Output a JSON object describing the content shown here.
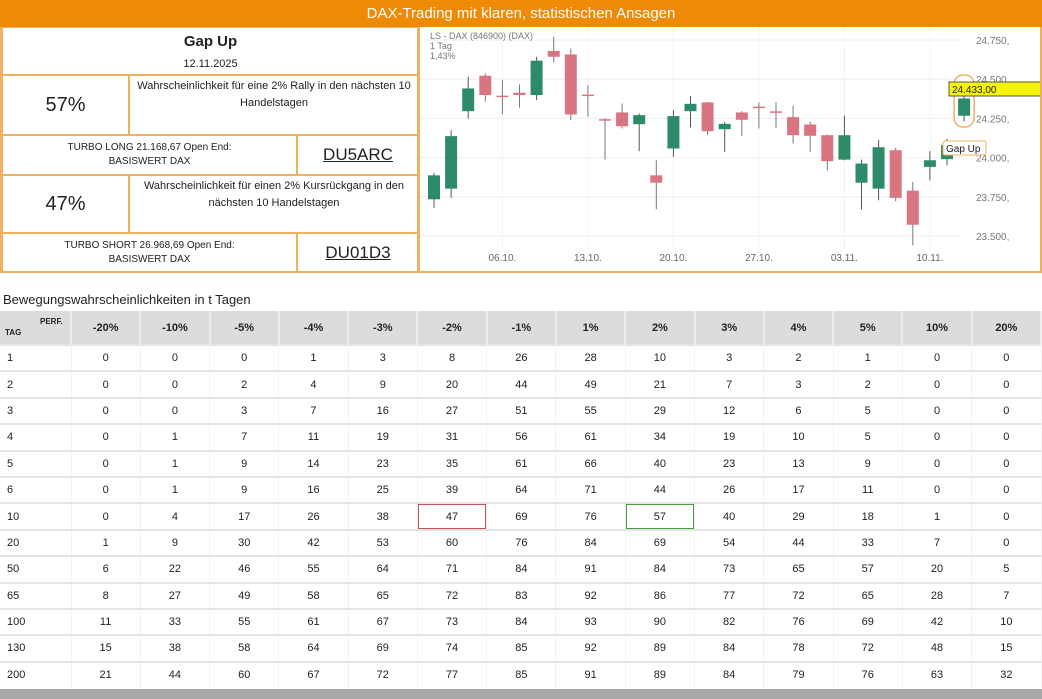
{
  "header": {
    "title": "DAX-Trading mit klaren, statistischen Ansagen"
  },
  "signal": {
    "name": "Gap Up",
    "date": "12.11.2025",
    "rally_pct": "57%",
    "rally_text": "Wahrscheinlichkeit für eine 2% Rally in den nächsten 10 Handelstagen",
    "long_text1": "TURBO LONG 21.168,67 Open End:",
    "long_text2": "BASISWERT DAX",
    "long_code": "DU5ARC",
    "drop_pct": "47%",
    "drop_text": "Wahrscheinlichkeit für einen 2% Kursrückgang in den nächsten 10 Handelstagen",
    "short_text1": "TURBO SHORT 26.968,69 Open End:",
    "short_text2": "BASISWERT DAX",
    "short_code": "DU01D3"
  },
  "chart_data": {
    "type": "candlestick",
    "legend": [
      "LS - DAX (846900) (DAX)",
      "1 Tag",
      "1,43%"
    ],
    "ylim": [
      23400,
      24800
    ],
    "y_ticks": [
      {
        "v": 24750,
        "label": "24.750,"
      },
      {
        "v": 24500,
        "label": "24.500,"
      },
      {
        "v": 24250,
        "label": "24.250,"
      },
      {
        "v": 24000,
        "label": "24.000,"
      },
      {
        "v": 23750,
        "label": "23.750,"
      },
      {
        "v": 23500,
        "label": "23.500,"
      }
    ],
    "x_ticks": [
      {
        "i": 4,
        "label": "06.10."
      },
      {
        "i": 9,
        "label": "13.10."
      },
      {
        "i": 14,
        "label": "20.10."
      },
      {
        "i": 19,
        "label": "27.10."
      },
      {
        "i": 24,
        "label": "03.11."
      },
      {
        "i": 29,
        "label": "10.11."
      }
    ],
    "last_price": "24.433,00",
    "annotation": "Gap Up",
    "colors": {
      "up": "#2e8b6a",
      "down": "#d97580"
    },
    "ohlc": [
      [
        23734,
        23902,
        23679,
        23887
      ],
      [
        23802,
        24175,
        23743,
        24137
      ],
      [
        24296,
        24516,
        24249,
        24441
      ],
      [
        24522,
        24537,
        24356,
        24399
      ],
      [
        24395,
        24494,
        24275,
        24390
      ],
      [
        24414,
        24467,
        24318,
        24399
      ],
      [
        24399,
        24643,
        24367,
        24618
      ],
      [
        24680,
        24771,
        24607,
        24643
      ],
      [
        24658,
        24697,
        24239,
        24275
      ],
      [
        24402,
        24462,
        24260,
        24399
      ],
      [
        24245,
        24250,
        23987,
        24243
      ],
      [
        24288,
        24345,
        24186,
        24200
      ],
      [
        24213,
        24281,
        24041,
        24271
      ],
      [
        23887,
        23983,
        23670,
        23840
      ],
      [
        24058,
        24303,
        24005,
        24265
      ],
      [
        24296,
        24394,
        24192,
        24343
      ],
      [
        24352,
        24356,
        24143,
        24168
      ],
      [
        24181,
        24228,
        24036,
        24215
      ],
      [
        24288,
        24296,
        24139,
        24241
      ],
      [
        24325,
        24352,
        24186,
        24323
      ],
      [
        24295,
        24352,
        24186,
        24292
      ],
      [
        24258,
        24330,
        24090,
        24143
      ],
      [
        24211,
        24228,
        24036,
        24139
      ],
      [
        24143,
        24147,
        23919,
        23977
      ],
      [
        23987,
        24267,
        23983,
        24143
      ],
      [
        23840,
        23987,
        23670,
        23962
      ],
      [
        23802,
        24111,
        23728,
        24066
      ],
      [
        24047,
        24062,
        23721,
        23743
      ],
      [
        23789,
        23845,
        23440,
        23572
      ],
      [
        23941,
        24041,
        23855,
        23983
      ],
      [
        23990,
        24120,
        23950,
        24080
      ],
      [
        24267,
        24456,
        24232,
        24377
      ]
    ]
  },
  "table": {
    "title": "Bewegungswahrscheinlichkeiten in t Tagen",
    "corner_tag": "TAG",
    "corner_perf": "PERF.",
    "columns": [
      "-20%",
      "-10%",
      "-5%",
      "-4%",
      "-3%",
      "-2%",
      "-1%",
      "1%",
      "2%",
      "3%",
      "4%",
      "5%",
      "10%",
      "20%"
    ],
    "rows": [
      {
        "tag": "1",
        "values": [
          0,
          0,
          0,
          1,
          3,
          8,
          26,
          28,
          10,
          3,
          2,
          1,
          0,
          0
        ]
      },
      {
        "tag": "2",
        "values": [
          0,
          0,
          2,
          4,
          9,
          20,
          44,
          49,
          21,
          7,
          3,
          2,
          0,
          0
        ]
      },
      {
        "tag": "3",
        "values": [
          0,
          0,
          3,
          7,
          16,
          27,
          51,
          55,
          29,
          12,
          6,
          5,
          0,
          0
        ]
      },
      {
        "tag": "4",
        "values": [
          0,
          1,
          7,
          11,
          19,
          31,
          56,
          61,
          34,
          19,
          10,
          5,
          0,
          0
        ]
      },
      {
        "tag": "5",
        "values": [
          0,
          1,
          9,
          14,
          23,
          35,
          61,
          66,
          40,
          23,
          13,
          9,
          0,
          0
        ]
      },
      {
        "tag": "6",
        "values": [
          0,
          1,
          9,
          16,
          25,
          39,
          64,
          71,
          44,
          26,
          17,
          11,
          0,
          0
        ]
      },
      {
        "tag": "10",
        "values": [
          0,
          4,
          17,
          26,
          38,
          47,
          69,
          76,
          57,
          40,
          29,
          18,
          1,
          0
        ],
        "highlight": {
          "-2%": "red",
          "2%": "green"
        }
      },
      {
        "tag": "20",
        "values": [
          1,
          9,
          30,
          42,
          53,
          60,
          76,
          84,
          69,
          54,
          44,
          33,
          7,
          0
        ]
      },
      {
        "tag": "50",
        "values": [
          6,
          22,
          46,
          55,
          64,
          71,
          84,
          91,
          84,
          73,
          65,
          57,
          20,
          5
        ]
      },
      {
        "tag": "65",
        "values": [
          8,
          27,
          49,
          58,
          65,
          72,
          83,
          92,
          86,
          77,
          72,
          65,
          28,
          7
        ]
      },
      {
        "tag": "100",
        "values": [
          11,
          33,
          55,
          61,
          67,
          73,
          84,
          93,
          90,
          82,
          76,
          69,
          42,
          10
        ]
      },
      {
        "tag": "130",
        "values": [
          15,
          38,
          58,
          64,
          69,
          74,
          85,
          92,
          89,
          84,
          78,
          72,
          48,
          15
        ]
      },
      {
        "tag": "200",
        "values": [
          21,
          44,
          60,
          67,
          72,
          77,
          85,
          91,
          89,
          84,
          79,
          76,
          63,
          32
        ]
      }
    ]
  }
}
